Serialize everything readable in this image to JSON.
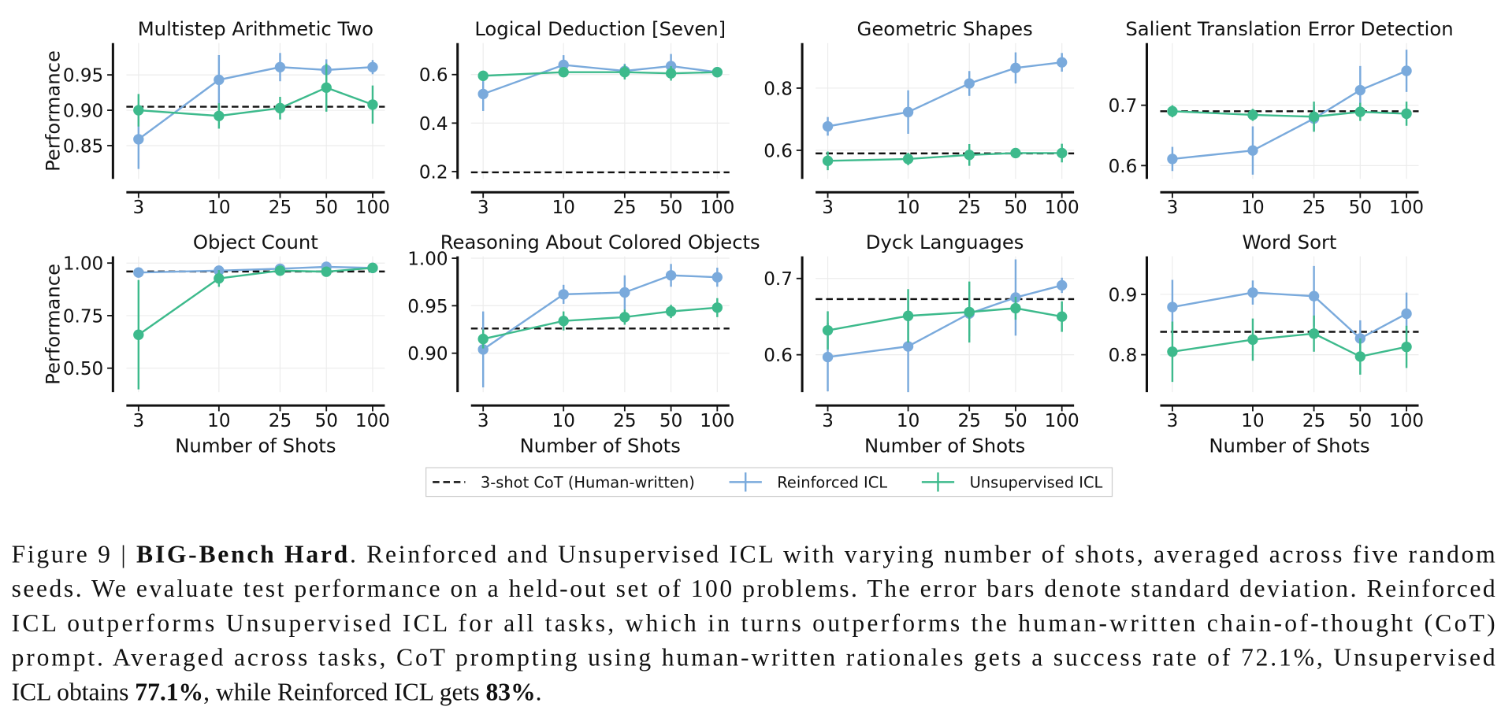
{
  "legend": [
    {
      "name": "3-shot CoT (Human-written)",
      "color": "#111111"
    },
    {
      "name": "Reinforced ICL",
      "color": "#7aaadc"
    },
    {
      "name": "Unsupervised ICL",
      "color": "#3dba8c"
    }
  ],
  "chart_data": [
    {
      "type": "line",
      "title": "Multistep Arithmetic Two",
      "ylabel": "Performance",
      "grid": true,
      "xscale": "log",
      "x": [
        3,
        10,
        25,
        50,
        100
      ],
      "xlim": [
        2.5,
        120
      ],
      "xticks": [
        3,
        10,
        25,
        50,
        100
      ],
      "ylim": [
        0.803,
        0.995
      ],
      "yticks": [
        0.95,
        {
          "value": 0.9,
          "label": "0.90"
        },
        0.85
      ],
      "baseline": 0.905,
      "series": [
        {
          "values": [
            0.859,
            0.943,
            0.961,
            0.957,
            0.961
          ],
          "errors": [
            0.042,
            0.035,
            0.02,
            0.015,
            0.01
          ]
        },
        {
          "values": [
            0.9,
            0.892,
            0.903,
            0.932,
            0.908
          ],
          "errors": [
            0.023,
            0.018,
            0.016,
            0.034,
            0.027
          ]
        }
      ]
    },
    {
      "type": "line",
      "title": "Logical Deduction [Seven]",
      "grid": true,
      "xscale": "log",
      "x": [
        3,
        10,
        25,
        50,
        100
      ],
      "xlim": [
        2.5,
        120
      ],
      "xticks": [
        3,
        10,
        25,
        50,
        100
      ],
      "ylim": [
        0.17,
        0.73
      ],
      "yticks": [
        0.6,
        0.4,
        0.2
      ],
      "baseline": 0.197,
      "series": [
        {
          "values": [
            0.52,
            0.64,
            0.615,
            0.635,
            0.61
          ],
          "errors": [
            0.07,
            0.04,
            0.03,
            0.05,
            0.02
          ]
        },
        {
          "values": [
            0.595,
            0.61,
            0.61,
            0.605,
            0.61
          ],
          "errors": [
            0.02,
            0.02,
            0.03,
            0.03,
            0.02
          ]
        }
      ]
    },
    {
      "type": "line",
      "title": "Geometric Shapes",
      "grid": true,
      "xscale": "log",
      "x": [
        3,
        10,
        25,
        50,
        100
      ],
      "xlim": [
        2.5,
        120
      ],
      "xticks": [
        3,
        10,
        25,
        50,
        100
      ],
      "ylim": [
        0.508,
        0.945
      ],
      "yticks": [
        0.8,
        0.6
      ],
      "baseline": 0.59,
      "series": [
        {
          "values": [
            0.677,
            0.723,
            0.815,
            0.865,
            0.883
          ],
          "errors": [
            0.03,
            0.07,
            0.04,
            0.05,
            0.03
          ]
        },
        {
          "values": [
            0.566,
            0.572,
            0.585,
            0.591,
            0.591
          ],
          "errors": [
            0.03,
            0.02,
            0.035,
            0.01,
            0.03
          ]
        }
      ]
    },
    {
      "type": "line",
      "title": "Salient Translation Error Detection",
      "grid": true,
      "xscale": "log",
      "x": [
        3,
        10,
        25,
        50,
        100
      ],
      "xlim": [
        2.5,
        120
      ],
      "xticks": [
        3,
        10,
        25,
        50,
        100
      ],
      "ylim": [
        0.578,
        0.803
      ],
      "yticks": [
        0.7,
        0.6
      ],
      "baseline": 0.69,
      "series": [
        {
          "values": [
            0.611,
            0.625,
            0.678,
            0.725,
            0.757
          ],
          "errors": [
            0.02,
            0.04,
            0.02,
            0.04,
            0.035
          ]
        },
        {
          "values": [
            0.69,
            0.684,
            0.681,
            0.689,
            0.686
          ],
          "errors": [
            0.01,
            0.01,
            0.025,
            0.015,
            0.02
          ]
        }
      ]
    },
    {
      "type": "line",
      "title": "Object Count",
      "ylabel": "Performance",
      "xlabel": "Number of Shots",
      "grid": true,
      "xscale": "log",
      "x": [
        3,
        10,
        25,
        50,
        100
      ],
      "xlim": [
        2.5,
        120
      ],
      "xticks": [
        3,
        10,
        25,
        50,
        100
      ],
      "ylim": [
        0.386,
        1.032
      ],
      "yticks": [
        {
          "value": 1,
          "label": "1.00"
        },
        0.75,
        {
          "value": 0.5,
          "label": "0.50"
        }
      ],
      "baseline": 0.96,
      "series": [
        {
          "values": [
            0.955,
            0.964,
            0.973,
            0.982,
            0.977
          ],
          "errors": [
            0.01,
            0.01,
            0.008,
            0.008,
            0.01
          ]
        },
        {
          "values": [
            0.659,
            0.927,
            0.964,
            0.959,
            0.977
          ],
          "errors": [
            0.26,
            0.04,
            0.015,
            0.01,
            0.01
          ]
        }
      ]
    },
    {
      "type": "line",
      "title": "Reasoning About Colored Objects",
      "xlabel": "Number of Shots",
      "grid": true,
      "xscale": "log",
      "x": [
        3,
        10,
        25,
        50,
        100
      ],
      "xlim": [
        2.5,
        120
      ],
      "xticks": [
        3,
        10,
        25,
        50,
        100
      ],
      "ylim": [
        0.859,
        1.002
      ],
      "yticks": [
        {
          "value": 1,
          "label": "1.00"
        },
        0.95,
        {
          "value": 0.9,
          "label": "0.90"
        }
      ],
      "baseline": 0.926,
      "series": [
        {
          "values": [
            0.904,
            0.962,
            0.964,
            0.982,
            0.98
          ],
          "errors": [
            0.04,
            0.01,
            0.018,
            0.012,
            0.01
          ]
        },
        {
          "values": [
            0.915,
            0.934,
            0.938,
            0.944,
            0.948
          ],
          "errors": [
            0.01,
            0.01,
            0.008,
            0.007,
            0.01
          ]
        }
      ]
    },
    {
      "type": "line",
      "title": "Dyck Languages",
      "xlabel": "Number of Shots",
      "grid": true,
      "xscale": "log",
      "x": [
        3,
        10,
        25,
        50,
        100
      ],
      "xlim": [
        2.5,
        120
      ],
      "xticks": [
        3,
        10,
        25,
        50,
        100
      ],
      "ylim": [
        0.551,
        0.729
      ],
      "yticks": [
        0.7,
        0.6
      ],
      "baseline": 0.673,
      "series": [
        {
          "values": [
            0.597,
            0.611,
            0.654,
            0.675,
            0.691
          ],
          "errors": [
            0.045,
            0.06,
            0.03,
            0.05,
            0.01
          ]
        },
        {
          "values": [
            0.632,
            0.651,
            0.656,
            0.661,
            0.65
          ],
          "errors": [
            0.025,
            0.035,
            0.04,
            0.015,
            0.02
          ]
        }
      ]
    },
    {
      "type": "line",
      "title": "Word Sort",
      "xlabel": "Number of Shots",
      "grid": true,
      "xscale": "log",
      "x": [
        3,
        10,
        25,
        50,
        100
      ],
      "xlim": [
        2.5,
        120
      ],
      "xticks": [
        3,
        10,
        25,
        50,
        100
      ],
      "ylim": [
        0.738,
        0.963
      ],
      "yticks": [
        0.9,
        0.8
      ],
      "baseline": 0.838,
      "series": [
        {
          "values": [
            0.879,
            0.903,
            0.897,
            0.827,
            0.868
          ],
          "errors": [
            0.045,
            0.02,
            0.05,
            0.03,
            0.035
          ]
        },
        {
          "values": [
            0.805,
            0.825,
            0.835,
            0.797,
            0.813
          ],
          "errors": [
            0.05,
            0.035,
            0.03,
            0.03,
            0.035
          ]
        }
      ]
    }
  ],
  "caption": [
    [
      {
        "text": "Figure 9 | "
      },
      {
        "text": "BIG-Bench Hard",
        "bold": true
      },
      {
        "text": ". Reinforced and Unsupervised ICL with varying number of shots, averaged across five random"
      }
    ],
    [
      {
        "text": "seeds. We evaluate test performance on a held-out set of 100 problems. The error bars denote standard deviation. Reinforced"
      }
    ],
    [
      {
        "text": "ICL outperforms Unsupervised ICL for all tasks, which in turns outperforms the human-written chain-of-thought (CoT)"
      }
    ],
    [
      {
        "text": "prompt. Averaged across tasks, CoT prompting using human-written rationales gets a success rate of 72.1%, Unsupervised"
      }
    ],
    [
      {
        "text": "ICL obtains "
      },
      {
        "text": "77.1%",
        "bold": true
      },
      {
        "text": ", while Reinforced ICL gets "
      },
      {
        "text": "83%",
        "bold": true
      },
      {
        "text": "."
      }
    ]
  ]
}
